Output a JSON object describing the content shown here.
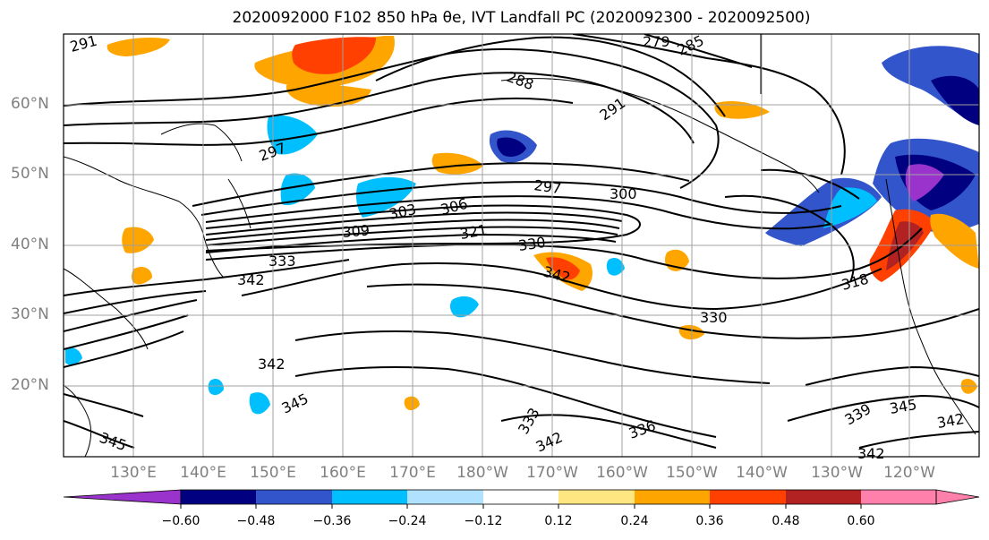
{
  "title": "2020092000 F102 850 hPa θe, IVT Landfall PC (2020092300 - 2020092500)",
  "latitude_labels": [
    "60°N",
    "50°N",
    "40°N",
    "30°N",
    "20°N"
  ],
  "longitude_labels": [
    "130°E",
    "140°E",
    "150°E",
    "160°E",
    "170°E",
    "180°W",
    "170°W",
    "160°W",
    "150°W",
    "140°W",
    "130°W",
    "120°W"
  ],
  "colorbar": {
    "ticks": [
      "−0.60",
      "−0.48",
      "−0.36",
      "−0.24",
      "−0.12",
      "0.12",
      "0.24",
      "0.36",
      "0.48",
      "0.60"
    ],
    "colors": [
      "#9933cc",
      "#000080",
      "#3355cc",
      "#00bfff",
      "#b0e2ff",
      "#ffffff",
      "#ffe680",
      "#ffa500",
      "#ff4000",
      "#b22222",
      "#ff80aa"
    ]
  },
  "contour_labels": [
    "297",
    "288",
    "279",
    "285",
    "291",
    "297",
    "300",
    "303",
    "306",
    "309",
    "321",
    "330",
    "333",
    "342",
    "342",
    "330",
    "318",
    "342",
    "345",
    "333",
    "336",
    "342",
    "339",
    "345",
    "342",
    "342",
    "345",
    "291"
  ],
  "colors": {
    "axis": "#000000",
    "grid": "#a0a0a0",
    "coast": "#000000",
    "tick_label": "#808080"
  }
}
